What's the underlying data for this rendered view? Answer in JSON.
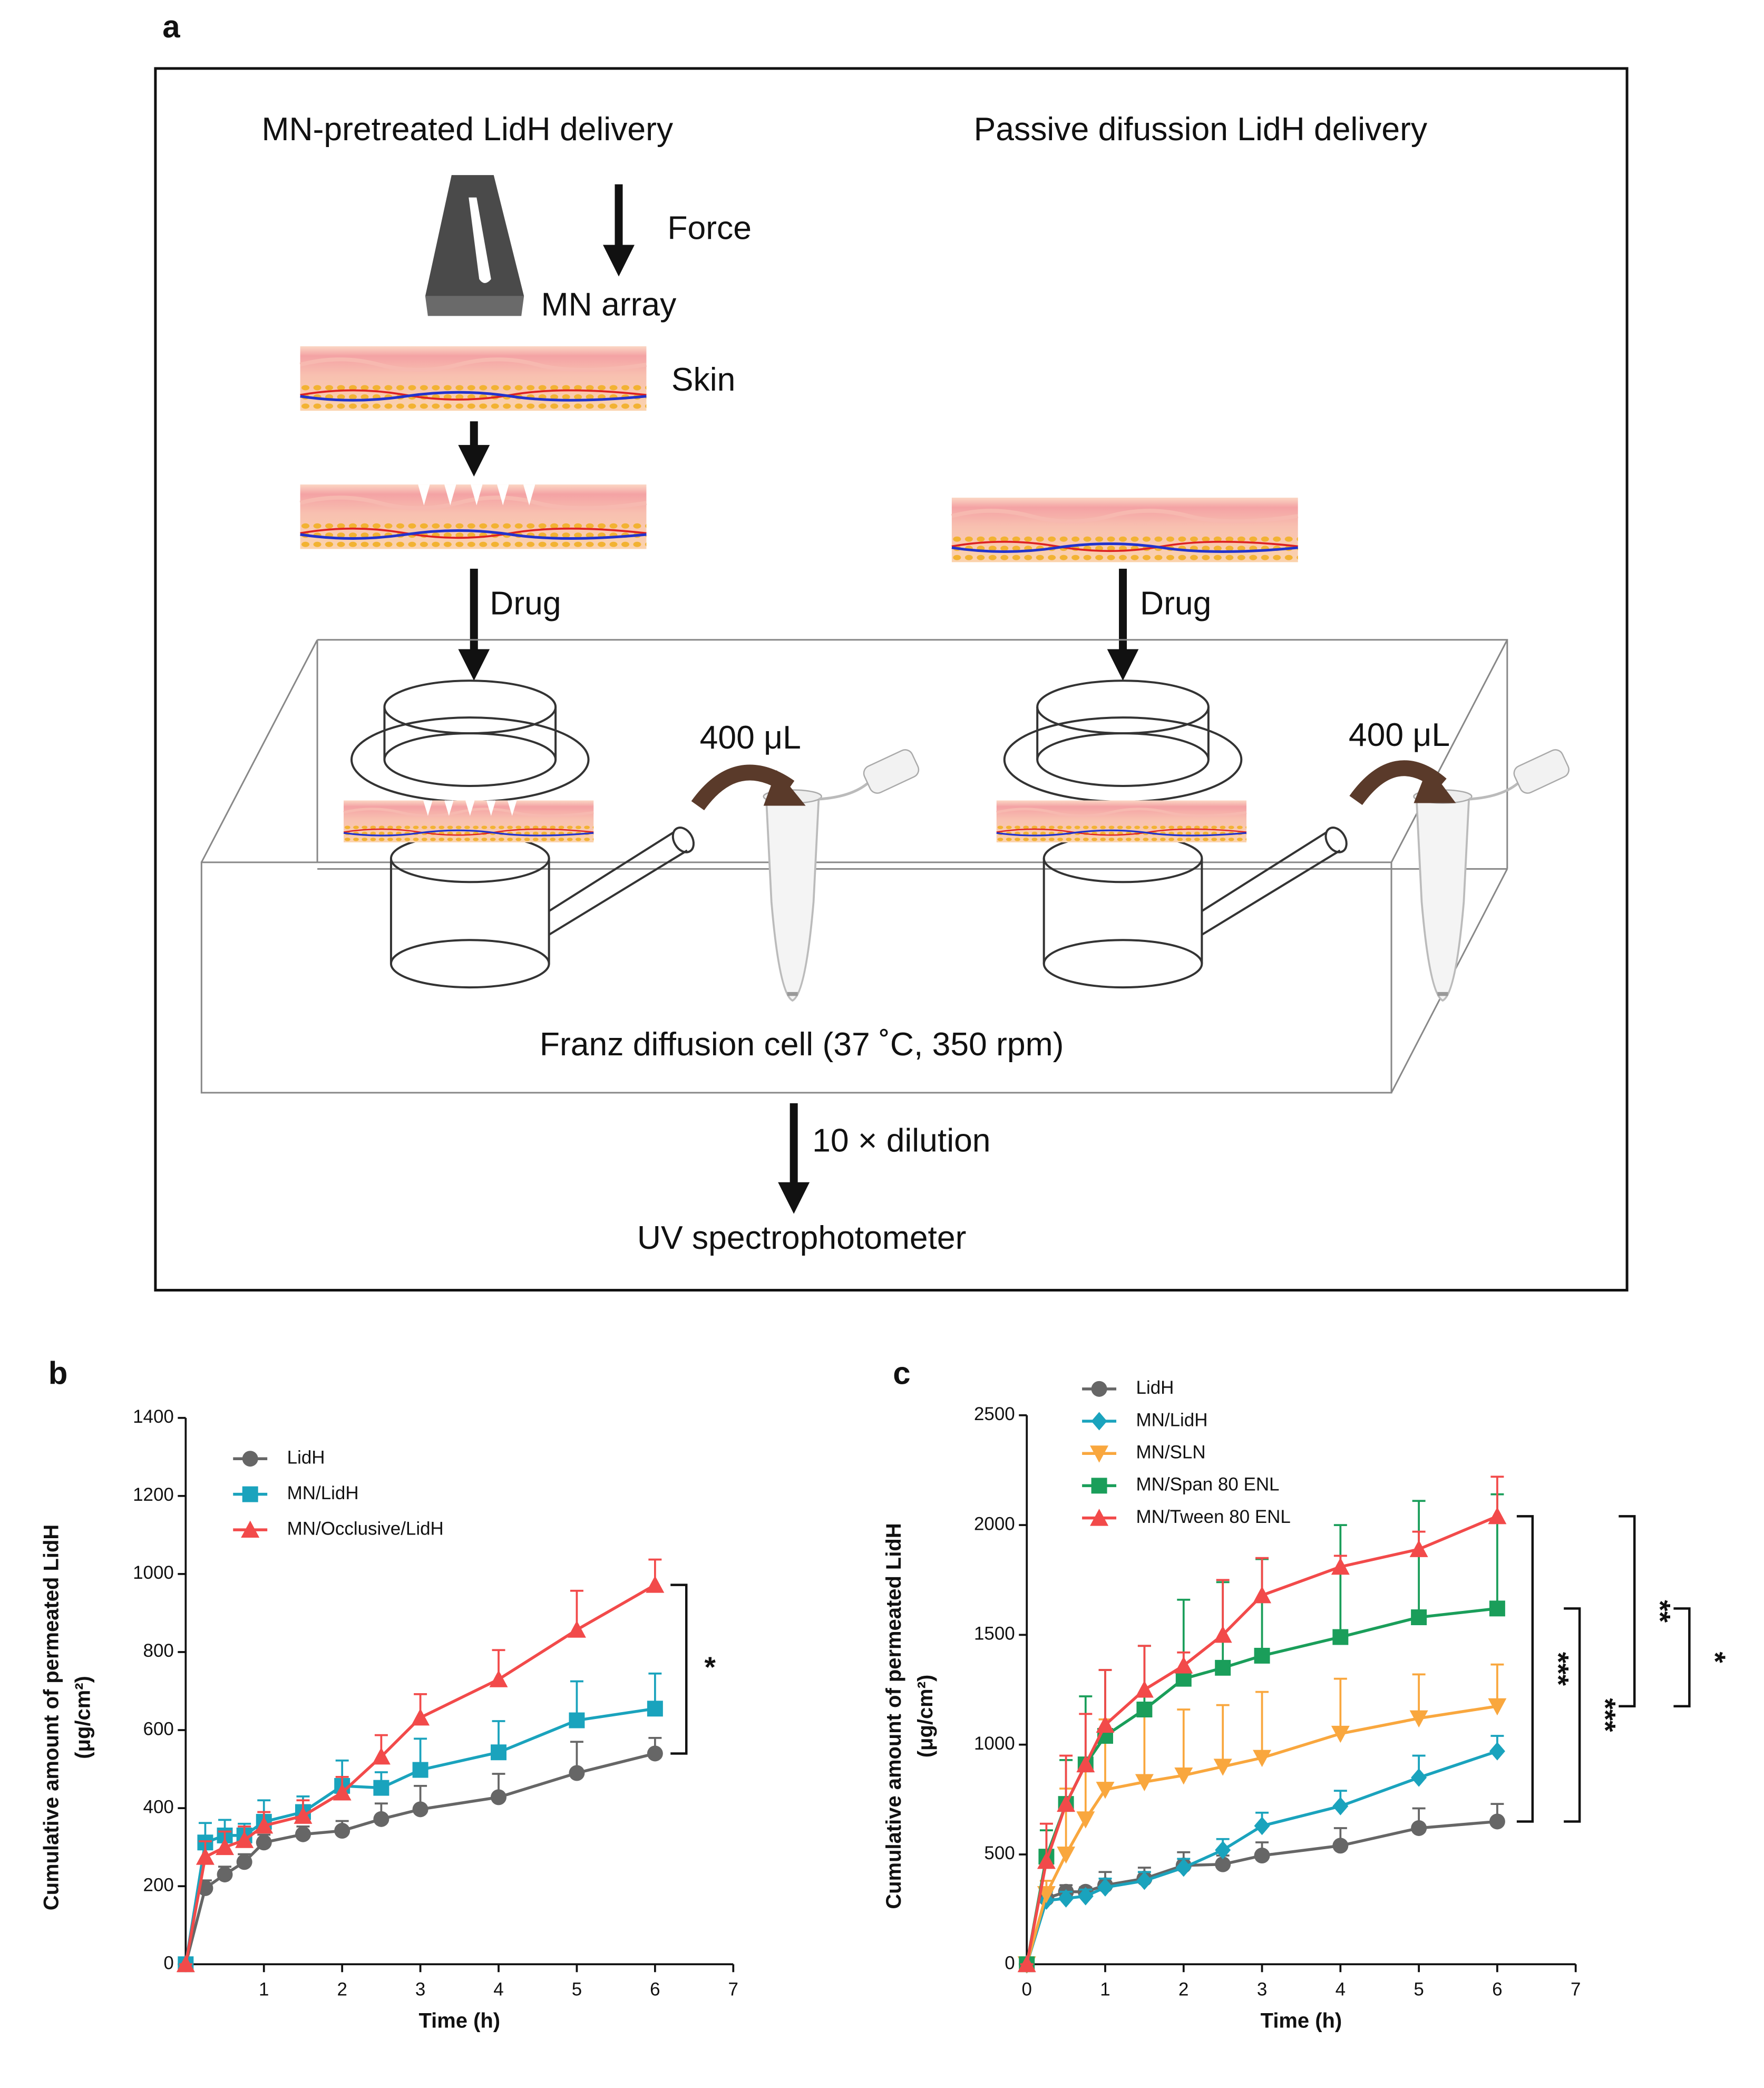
{
  "panel_labels": [
    "a",
    "b",
    "c"
  ],
  "diagram": {
    "left_title": "MN-pretreated LidH delivery",
    "right_title": "Passive difussion LidH delivery",
    "force": "Force",
    "mn_array": "MN array",
    "skin": "Skin",
    "drug_left": "Drug",
    "drug_right": "Drug",
    "volume_left": "400 μL",
    "volume_right": "400 μL",
    "cell": "Franz diffusion cell (37 ˚C, 350 rpm)",
    "dilution": "10 × dilution",
    "instrument": "UV spectrophotometer"
  },
  "chart_data": [
    {
      "type": "line",
      "xlabel": "Time (h)",
      "ylabel": [
        "Cumulative amount of permeated LidH",
        "(μg/cm²)"
      ],
      "x": [
        0,
        0.25,
        0.5,
        0.75,
        1,
        1.5,
        2,
        2.5,
        3,
        4,
        5,
        6
      ],
      "xlim": [
        0,
        7
      ],
      "xticks": [
        1,
        2,
        3,
        4,
        5,
        6,
        7
      ],
      "ylim": [
        0,
        1400
      ],
      "yticks": [
        0,
        200,
        400,
        600,
        800,
        1000,
        1200,
        1400
      ],
      "legend": "upper left",
      "series": [
        {
          "name": "LidH",
          "color": "#666666",
          "marker": "circle",
          "values": [
            0,
            195,
            230,
            262,
            312,
            333,
            342,
            372,
            397,
            428,
            490,
            540
          ],
          "errors": [
            0,
            20,
            20,
            20,
            20,
            20,
            25,
            40,
            60,
            60,
            80,
            40
          ]
        },
        {
          "name": "MN/LidH",
          "color": "#1aa3bd",
          "marker": "square",
          "values": [
            0,
            312,
            330,
            330,
            365,
            390,
            457,
            452,
            498,
            543,
            625,
            655
          ],
          "errors": [
            0,
            50,
            40,
            30,
            55,
            40,
            65,
            40,
            80,
            80,
            100,
            90
          ]
        },
        {
          "name": "MN/Occlusive/LidH",
          "color": "#f24a4a",
          "marker": "triangle",
          "values": [
            0,
            275,
            300,
            318,
            355,
            380,
            440,
            532,
            632,
            730,
            857,
            972
          ],
          "errors": [
            0,
            40,
            40,
            35,
            35,
            40,
            40,
            55,
            60,
            75,
            100,
            65
          ]
        }
      ],
      "annotations": [
        "*"
      ]
    },
    {
      "type": "line",
      "xlabel": "Time (h)",
      "ylabel": [
        "Cumulative amount of permeated LidH",
        "(μg/cm²)"
      ],
      "x": [
        0,
        0.25,
        0.5,
        0.75,
        1,
        1.5,
        2,
        2.5,
        3,
        4,
        5,
        6
      ],
      "xlim": [
        0,
        7
      ],
      "xticks": [
        0,
        1,
        2,
        3,
        4,
        5,
        6,
        7
      ],
      "ylim": [
        0,
        2500
      ],
      "yticks": [
        0,
        500,
        1000,
        1500,
        2000,
        2500
      ],
      "legend": "upper left",
      "series": [
        {
          "name": "LidH",
          "color": "#666666",
          "marker": "circle",
          "values": [
            0,
            300,
            330,
            330,
            360,
            390,
            450,
            455,
            495,
            540,
            620,
            650
          ],
          "errors": [
            0,
            40,
            30,
            20,
            60,
            50,
            60,
            40,
            60,
            80,
            90,
            80
          ]
        },
        {
          "name": "MN/LidH",
          "color": "#1aa3bd",
          "marker": "diamond",
          "values": [
            0,
            290,
            300,
            310,
            350,
            380,
            440,
            520,
            630,
            720,
            850,
            970
          ],
          "errors": [
            0,
            40,
            30,
            30,
            40,
            40,
            40,
            50,
            60,
            70,
            100,
            70
          ]
        },
        {
          "name": "MN/SLN",
          "color": "#f9a73e",
          "marker": "triangle-down",
          "values": [
            0,
            320,
            500,
            660,
            795,
            830,
            860,
            900,
            940,
            1050,
            1120,
            1175
          ],
          "errors": [
            0,
            60,
            300,
            270,
            320,
            300,
            300,
            280,
            300,
            250,
            200,
            190
          ]
        },
        {
          "name": "MN/Span 80 ENL",
          "color": "#1a9e5a",
          "marker": "square",
          "values": [
            0,
            490,
            730,
            910,
            1040,
            1160,
            1300,
            1350,
            1405,
            1490,
            1580,
            1620
          ],
          "errors": [
            0,
            120,
            200,
            310,
            300,
            290,
            360,
            390,
            440,
            510,
            530,
            520
          ]
        },
        {
          "name": "MN/Tween 80 ENL",
          "color": "#f24a4a",
          "marker": "triangle",
          "values": [
            0,
            470,
            730,
            910,
            1090,
            1250,
            1360,
            1500,
            1680,
            1810,
            1890,
            2040
          ],
          "errors": [
            0,
            170,
            220,
            230,
            250,
            200,
            60,
            250,
            170,
            50,
            80,
            180
          ]
        }
      ],
      "annotations": [
        "***",
        "***",
        "**",
        "*"
      ]
    }
  ]
}
